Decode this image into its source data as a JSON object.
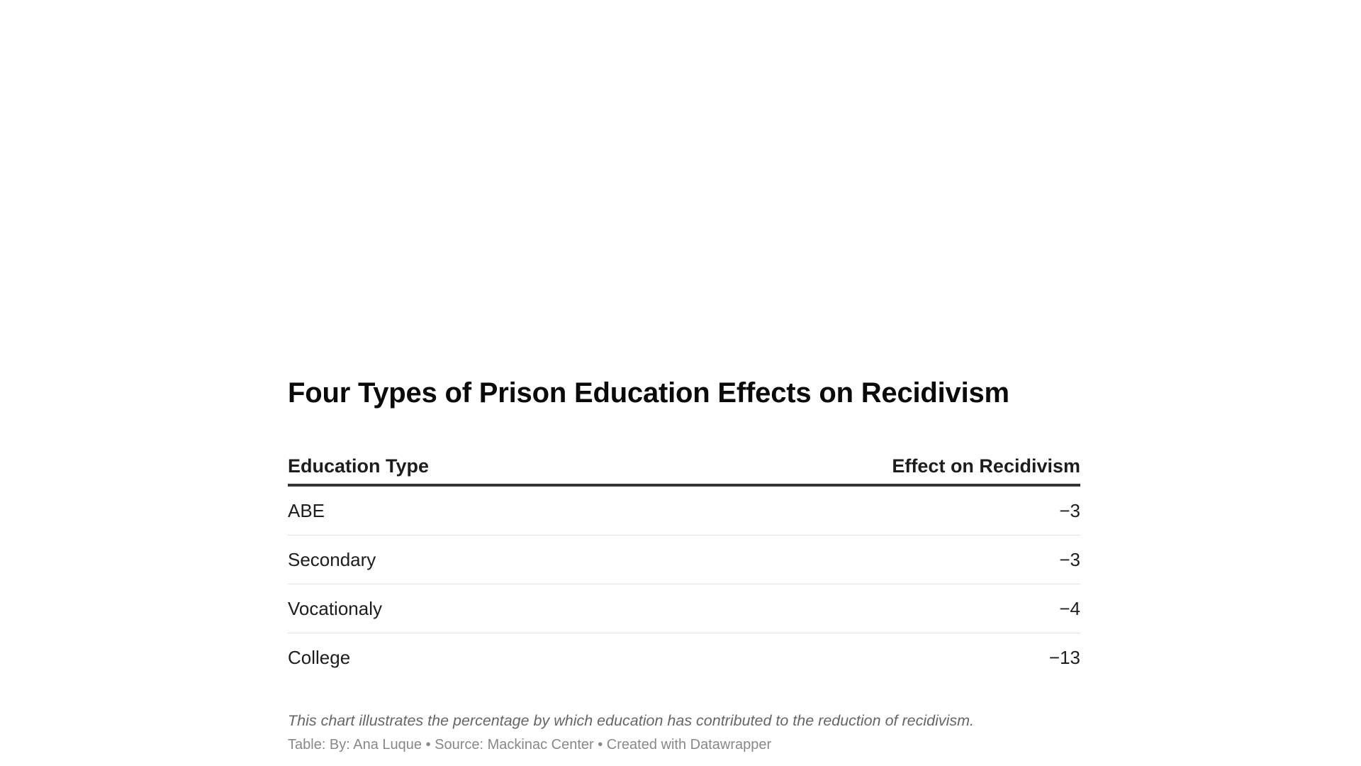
{
  "chart_data": {
    "type": "table",
    "title": "Four Types of Prison Education Effects on Recidivism",
    "columns": [
      "Education Type",
      "Effect on Recidivism"
    ],
    "rows": [
      {
        "type": "ABE",
        "effect": "−3"
      },
      {
        "type": "Secondary",
        "effect": "−3"
      },
      {
        "type": "Vocationaly",
        "effect": "−4"
      },
      {
        "type": "College",
        "effect": "−13"
      }
    ],
    "values": [
      -3,
      -3,
      -4,
      -13
    ],
    "notes": "This chart illustrates the percentage by which education has contributed to the reduction of recidivism.",
    "byline": "Table: By: Ana Luque • Source: Mackinac Center • Created with Datawrapper"
  },
  "colors": {
    "title": "#0a0a0a",
    "text": "#1d1d1d",
    "header_rule": "#333333",
    "row_rule": "#e4e4e4",
    "notes": "#666666",
    "byline": "#888888"
  }
}
